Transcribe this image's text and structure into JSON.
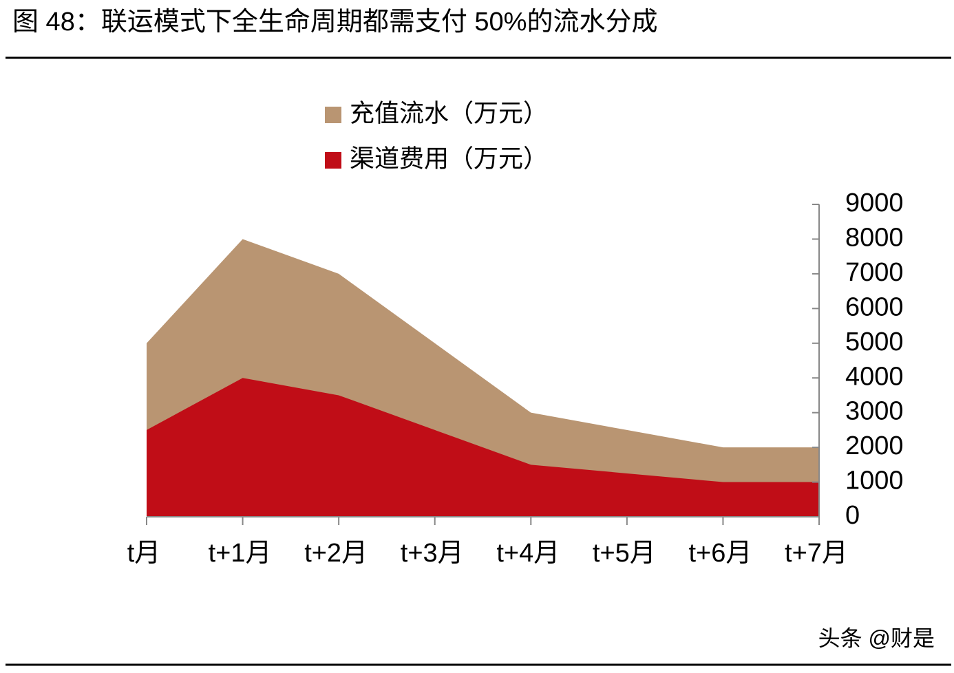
{
  "chart_data": {
    "type": "area",
    "title": "图 48：联运模式下全生命周期都需支付 50%的流水分成",
    "categories": [
      "t月",
      "t+1月",
      "t+2月",
      "t+3月",
      "t+4月",
      "t+5月",
      "t+6月",
      "t+7月"
    ],
    "series": [
      {
        "name": "充值流水（万元）",
        "color": "#b99572",
        "values": [
          5000,
          8000,
          7000,
          5000,
          3000,
          2500,
          2000,
          2000
        ]
      },
      {
        "name": "渠道费用（万元）",
        "color": "#c00d17",
        "values": [
          2500,
          4000,
          3500,
          2500,
          1500,
          1250,
          1000,
          1000
        ]
      }
    ],
    "ylim": [
      0,
      9000
    ],
    "yticks": [
      0,
      1000,
      2000,
      3000,
      4000,
      5000,
      6000,
      7000,
      8000,
      9000
    ],
    "y_axis_side": "right",
    "stacked": false,
    "grid": false,
    "legend": "top"
  },
  "watermark": "头条 @财是"
}
